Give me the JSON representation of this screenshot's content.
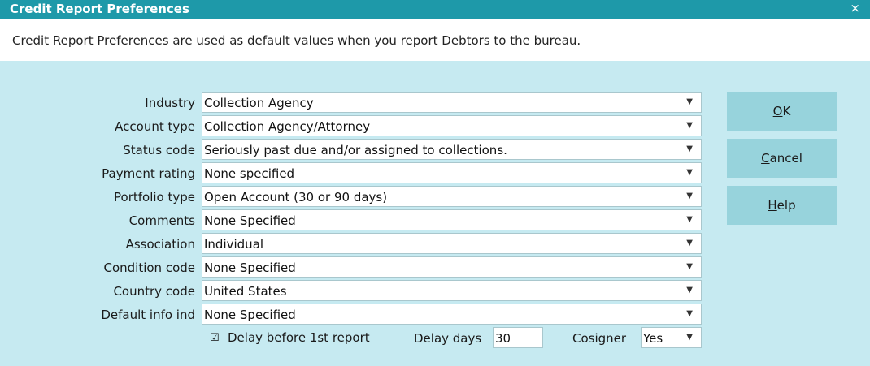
{
  "window": {
    "title": "Credit Report Preferences",
    "close_glyph": "×",
    "description": "Credit Report Preferences are used as default values when you report Debtors to the bureau."
  },
  "fields": [
    {
      "label": "Industry",
      "value": "Collection Agency"
    },
    {
      "label": "Account type",
      "value": "Collection Agency/Attorney"
    },
    {
      "label": "Status code",
      "value": "Seriously past due and/or assigned to collections."
    },
    {
      "label": "Payment rating",
      "value": "None specified"
    },
    {
      "label": "Portfolio type",
      "value": "Open Account (30 or 90 days)"
    },
    {
      "label": "Comments",
      "value": "None Specified"
    },
    {
      "label": "Association",
      "value": "Individual"
    },
    {
      "label": "Condition code",
      "value": "None Specified"
    },
    {
      "label": "Country code",
      "value": "United States"
    },
    {
      "label": "Default info ind",
      "value": "None Specified"
    }
  ],
  "dropdown_arrow": "▼",
  "delay": {
    "checkbox_glyph": "☑",
    "checked": true,
    "checkbox_label": "Delay before 1st report",
    "days_label": "Delay days",
    "days_value": "30"
  },
  "cosigner": {
    "label": "Cosigner",
    "value": "Yes"
  },
  "buttons": {
    "ok": {
      "mnemonic": "O",
      "rest": "K"
    },
    "cancel": {
      "mnemonic": "C",
      "rest": "ancel"
    },
    "help": {
      "mnemonic": "H",
      "rest": "elp"
    }
  }
}
